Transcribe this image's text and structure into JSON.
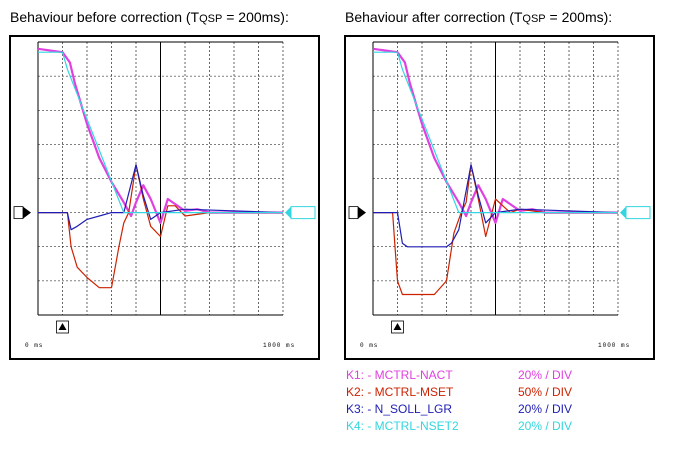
{
  "colors": {
    "nact": "#e040e0",
    "mset": "#cc2200",
    "nsoll": "#1e1eb4",
    "nset2": "#33d6e0",
    "grid": "#000000"
  },
  "chart_data": [
    {
      "type": "line",
      "title_prefix": "Behaviour before correction (T",
      "title_sub": "QSP",
      "title_suffix": " = 200ms):",
      "xlabel": "",
      "ylabel": "",
      "x_unit": "ms",
      "xlim": [
        0,
        1000
      ],
      "x_start_label": "0 ms",
      "x_end_label": "1000 ms",
      "ylim": [
        -3,
        5
      ],
      "y_unit": "divisions (0 = reference marker)",
      "grid": true,
      "series": [
        {
          "name": "K1: - MCTRL-NACT",
          "color_key": "nact",
          "x": [
            0,
            100,
            130,
            150,
            200,
            250,
            300,
            350,
            380,
            400,
            430,
            460,
            500,
            530,
            560,
            600,
            650,
            700,
            800,
            1000
          ],
          "y": [
            4.8,
            4.7,
            4.4,
            3.8,
            2.6,
            1.6,
            0.9,
            0.3,
            -0.1,
            0.3,
            0.8,
            0.4,
            -0.3,
            0.4,
            0.25,
            0.05,
            0.1,
            0.0,
            0.0,
            0.0
          ]
        },
        {
          "name": "K2: - MCTRL-MSET",
          "color_key": "mset",
          "x": [
            0,
            120,
            135,
            160,
            200,
            250,
            300,
            330,
            350,
            370,
            400,
            430,
            460,
            500,
            530,
            560,
            600,
            700,
            1000
          ],
          "y": [
            0.0,
            0.0,
            -1.0,
            -1.6,
            -1.9,
            -2.2,
            -2.2,
            -1.0,
            -0.3,
            0.0,
            1.4,
            0.4,
            -0.4,
            -0.7,
            0.2,
            0.2,
            -0.1,
            0.0,
            0.0
          ]
        },
        {
          "name": "K3: N_SOLL_LGR",
          "color_key": "nsoll",
          "x": [
            0,
            120,
            135,
            160,
            200,
            250,
            300,
            350,
            400,
            430,
            460,
            500,
            600,
            1000
          ],
          "y": [
            0.0,
            0.0,
            -0.5,
            -0.4,
            -0.2,
            -0.1,
            0.0,
            0.0,
            1.4,
            0.5,
            -0.2,
            0.0,
            0.1,
            0.0
          ]
        },
        {
          "name": "K4: - MCTRL-NSET2",
          "color_key": "nset2",
          "x": [
            0,
            100,
            120,
            350,
            400,
            500,
            1000
          ],
          "y": [
            4.7,
            4.7,
            4.2,
            0.0,
            0.0,
            0.0,
            0.0
          ]
        }
      ]
    },
    {
      "type": "line",
      "title_prefix": "Behaviour after correction (T",
      "title_sub": "QSP",
      "title_suffix": " = 200ms):",
      "xlabel": "",
      "ylabel": "",
      "x_unit": "ms",
      "xlim": [
        0,
        1000
      ],
      "x_start_label": "0 ms",
      "x_end_label": "1000 ms",
      "ylim": [
        -3,
        5
      ],
      "y_unit": "divisions (0 = reference marker)",
      "grid": true,
      "series": [
        {
          "name": "K1: - MCTRL-NACT",
          "color_key": "nact",
          "x": [
            0,
            100,
            130,
            150,
            200,
            250,
            300,
            350,
            380,
            400,
            430,
            460,
            500,
            530,
            560,
            600,
            650,
            700,
            800,
            1000
          ],
          "y": [
            4.8,
            4.7,
            4.4,
            3.8,
            2.6,
            1.6,
            0.9,
            0.3,
            -0.1,
            0.3,
            0.8,
            0.4,
            -0.3,
            0.4,
            0.25,
            0.05,
            0.1,
            0.0,
            0.0,
            0.0
          ]
        },
        {
          "name": "K2: - MCTRL-MSET",
          "color_key": "mset",
          "x": [
            0,
            80,
            90,
            100,
            120,
            200,
            250,
            300,
            330,
            360,
            380,
            400,
            430,
            460,
            500,
            530,
            560,
            600,
            700,
            1000
          ],
          "y": [
            0.0,
            0.0,
            -1.0,
            -2.0,
            -2.4,
            -2.4,
            -2.4,
            -2.0,
            -0.6,
            0.0,
            0.3,
            1.4,
            0.4,
            -0.7,
            0.4,
            0.2,
            0.0,
            0.1,
            0.0,
            0.0
          ]
        },
        {
          "name": "K3: N_SOLL_LGR",
          "color_key": "nsoll",
          "x": [
            0,
            100,
            120,
            140,
            300,
            320,
            350,
            400,
            430,
            460,
            500,
            600,
            1000
          ],
          "y": [
            0.0,
            0.0,
            -0.9,
            -1.0,
            -1.0,
            -0.9,
            -0.5,
            1.4,
            0.5,
            -0.3,
            0.0,
            0.1,
            0.0
          ]
        },
        {
          "name": "K4: - MCTRL-NSET2",
          "color_key": "nset2",
          "x": [
            0,
            100,
            120,
            350,
            400,
            500,
            1000
          ],
          "y": [
            4.7,
            4.7,
            4.2,
            0.0,
            0.0,
            0.0,
            0.0
          ]
        }
      ]
    }
  ],
  "legend": [
    {
      "label": "K1: - MCTRL-NACT",
      "scale": "20% / DIV",
      "color_key": "nact"
    },
    {
      "label": "K2: - MCTRL-MSET",
      "scale": "50% / DIV",
      "color_key": "mset"
    },
    {
      "label": "K3: - N_SOLL_LGR",
      "scale": "20% / DIV",
      "color_key": "nsoll"
    },
    {
      "label": "K4: - MCTRL-NSET2",
      "scale": "20% / DIV",
      "color_key": "nset2"
    }
  ]
}
